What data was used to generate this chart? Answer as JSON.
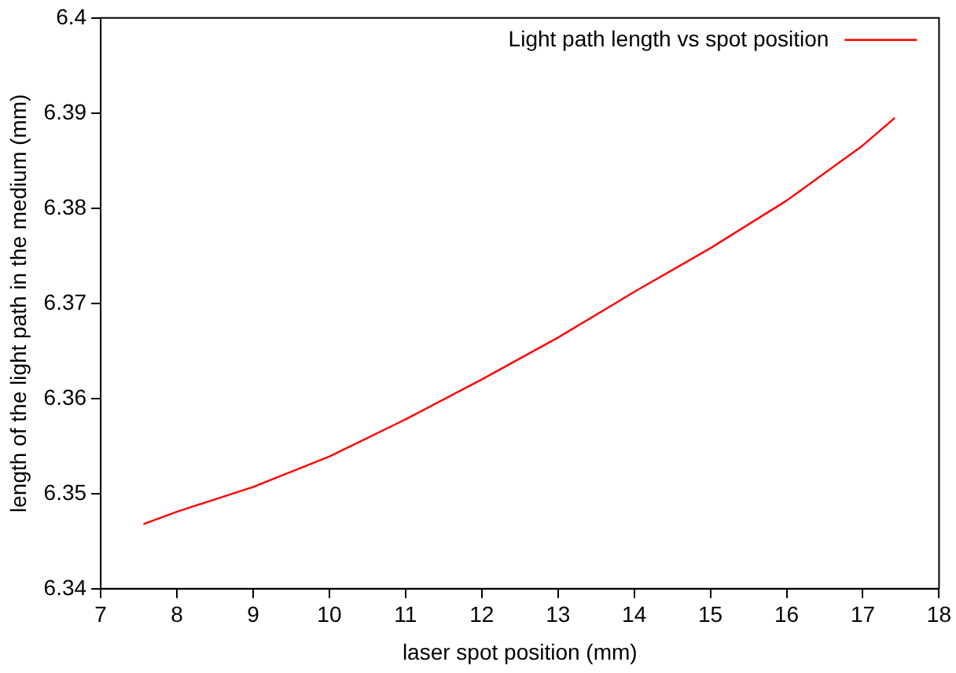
{
  "chart_data": {
    "type": "line",
    "xlabel": "laser spot position (mm)",
    "ylabel": "length of the light path in the medium (mm)",
    "x": [
      7.56,
      8,
      9,
      10,
      11,
      12,
      13,
      14,
      15,
      16,
      17,
      17.42
    ],
    "series": [
      {
        "name": "Light path length vs spot position",
        "color": "#ff0000",
        "values": [
          6.3468,
          6.3481,
          6.3507,
          6.3539,
          6.3578,
          6.362,
          6.3664,
          6.3712,
          6.3758,
          6.3808,
          6.3866,
          6.3895
        ]
      }
    ],
    "xlim": [
      7,
      18
    ],
    "xticks": [
      7,
      8,
      9,
      10,
      11,
      12,
      13,
      14,
      15,
      16,
      17,
      18
    ],
    "ylim": [
      6.34,
      6.4
    ],
    "yticks": [
      6.34,
      6.35,
      6.36,
      6.37,
      6.38,
      6.39,
      6.4
    ],
    "grid": false,
    "legend": "top right",
    "marker": "none",
    "line_style": "solid"
  }
}
